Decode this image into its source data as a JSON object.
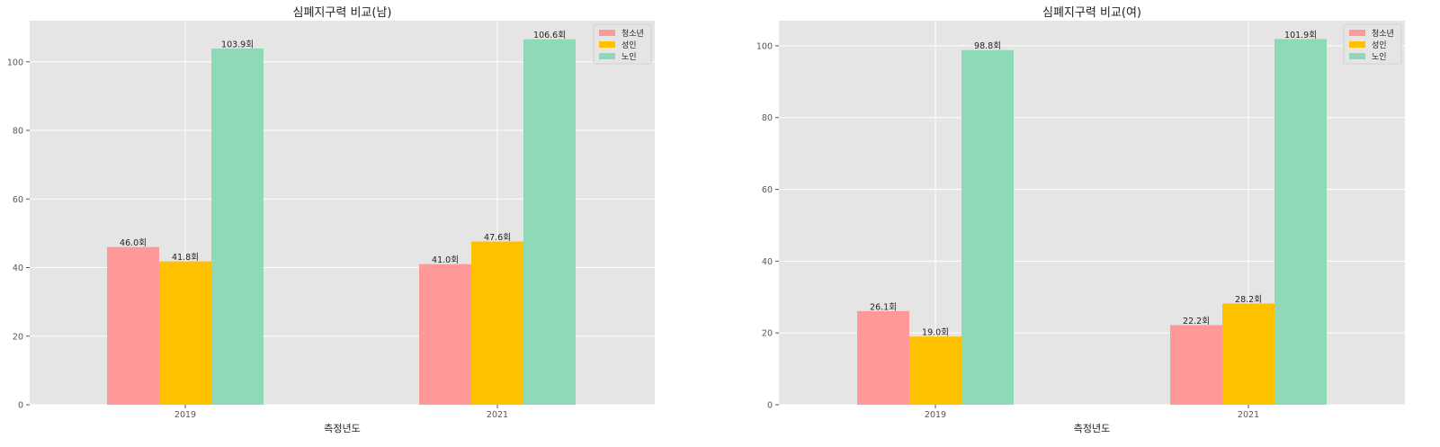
{
  "chart_data": [
    {
      "type": "bar",
      "title": "심폐지구력 비교(남)",
      "xlabel": "측정년도",
      "ylabel": "",
      "categories": [
        "2019",
        "2021"
      ],
      "ylim": [
        0,
        112
      ],
      "yticks": [
        0,
        20,
        40,
        60,
        80,
        100
      ],
      "grid": true,
      "legend_position": "top-right",
      "series": [
        {
          "name": "청소년",
          "values": [
            46.0,
            41.0
          ],
          "labels": [
            "46.0회",
            "41.0회"
          ],
          "color": "#ff9999"
        },
        {
          "name": "성인",
          "values": [
            41.8,
            47.6
          ],
          "labels": [
            "41.8회",
            "47.6회"
          ],
          "color": "#ffc000"
        },
        {
          "name": "노인",
          "values": [
            103.9,
            106.6
          ],
          "labels": [
            "103.9회",
            "106.6회"
          ],
          "color": "#8fd9b6"
        }
      ]
    },
    {
      "type": "bar",
      "title": "심폐지구력 비교(여)",
      "xlabel": "측정년도",
      "ylabel": "",
      "categories": [
        "2019",
        "2021"
      ],
      "ylim": [
        0,
        107
      ],
      "yticks": [
        0,
        20,
        40,
        60,
        80,
        100
      ],
      "grid": true,
      "legend_position": "top-right",
      "series": [
        {
          "name": "청소년",
          "values": [
            26.1,
            22.2
          ],
          "labels": [
            "26.1회",
            "22.2회"
          ],
          "color": "#ff9999"
        },
        {
          "name": "성인",
          "values": [
            19.0,
            28.2
          ],
          "labels": [
            "19.0회",
            "28.2회"
          ],
          "color": "#ffc000"
        },
        {
          "name": "노인",
          "values": [
            98.8,
            101.9
          ],
          "labels": [
            "98.8회",
            "101.9회"
          ],
          "color": "#8fd9b6"
        }
      ]
    }
  ],
  "style": {
    "plot_background": "#e5e5e5",
    "grid_color": "#ffffff",
    "tick_label_color": "#555555",
    "text_color": "#222222"
  }
}
